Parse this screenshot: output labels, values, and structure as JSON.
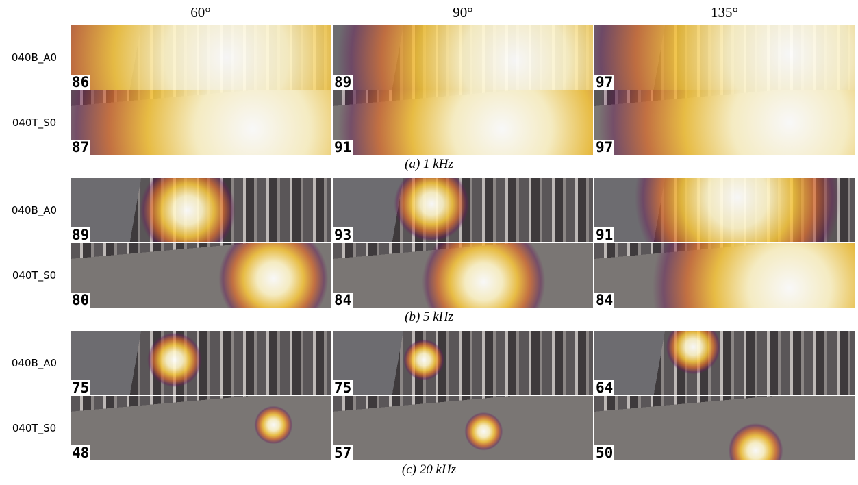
{
  "columns": [
    "60°",
    "90°",
    "135°"
  ],
  "panels": [
    {
      "caption": "(a) 1 kHz",
      "rows": [
        {
          "label": "040B_A0",
          "values": [
            86,
            89,
            97
          ]
        },
        {
          "label": "040T_S0",
          "values": [
            87,
            91,
            97
          ]
        }
      ]
    },
    {
      "caption": "(b) 5 kHz",
      "rows": [
        {
          "label": "040B_A0",
          "values": [
            89,
            93,
            91
          ]
        },
        {
          "label": "040T_S0",
          "values": [
            80,
            84,
            84
          ]
        }
      ]
    },
    {
      "caption": "(c) 20 kHz",
      "rows": [
        {
          "label": "040B_A0",
          "values": [
            75,
            75,
            64
          ]
        },
        {
          "label": "040T_S0",
          "values": [
            48,
            57,
            50
          ]
        }
      ]
    }
  ]
}
